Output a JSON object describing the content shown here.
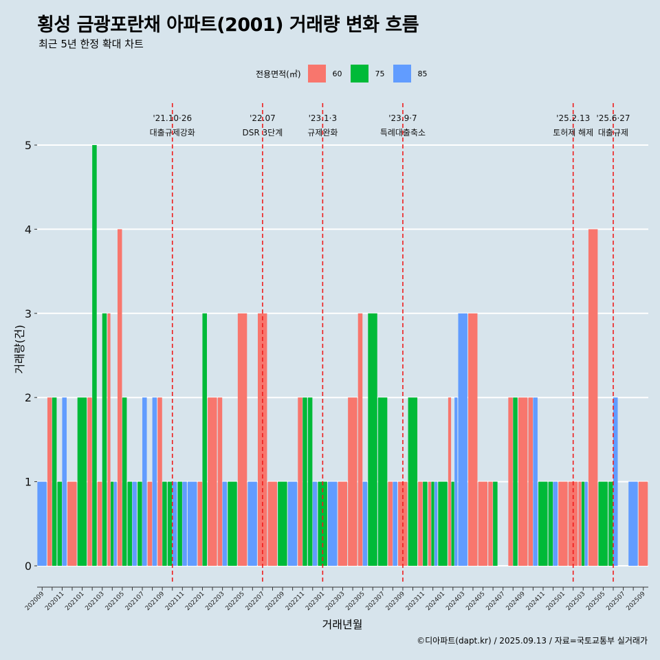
{
  "title": "횡성 금광포란채 아파트(2001) 거래량 변화 흐름",
  "subtitle": "최근 5년 한정 확대 차트",
  "caption": "©디아파트(dapt.kr) / 2025.09.13 / 자료=국토교통부 실거래가",
  "legend": {
    "title": "전용면적(㎡)",
    "items": [
      {
        "label": "60",
        "color": "#f8766d"
      },
      {
        "label": "75",
        "color": "#00ba38"
      },
      {
        "label": "85",
        "color": "#619cff"
      }
    ]
  },
  "chart_data": {
    "type": "bar",
    "xlabel": "거래년월",
    "ylabel": "거래량(건)",
    "ylim": [
      -0.2,
      5.5
    ],
    "yticks": [
      0,
      1,
      2,
      3,
      4,
      5
    ],
    "grid": true,
    "legend_position": "top",
    "categories": [
      "202009",
      "202010",
      "202011",
      "202012",
      "202101",
      "202102",
      "202103",
      "202104",
      "202105",
      "202106",
      "202107",
      "202108",
      "202109",
      "202110",
      "202111",
      "202112",
      "202201",
      "202202",
      "202203",
      "202204",
      "202205",
      "202206",
      "202207",
      "202208",
      "202209",
      "202210",
      "202211",
      "202212",
      "202301",
      "202302",
      "202303",
      "202304",
      "202305",
      "202306",
      "202307",
      "202308",
      "202309",
      "202310",
      "202311",
      "202312",
      "202401",
      "202402",
      "202403",
      "202404",
      "202405",
      "202406",
      "202407",
      "202408",
      "202409",
      "202410",
      "202411",
      "202412",
      "202501",
      "202502",
      "202503",
      "202504",
      "202505",
      "202506",
      "202507",
      "202508",
      "202509"
    ],
    "series": [
      {
        "name": "60",
        "color": "#f8766d",
        "values": [
          0,
          2,
          0,
          1,
          0,
          2,
          1,
          3,
          4,
          0,
          0,
          1,
          2,
          0,
          0,
          0,
          1,
          2,
          2,
          0,
          3,
          0,
          3,
          1,
          0,
          0,
          2,
          0,
          0,
          0,
          1,
          2,
          3,
          0,
          0,
          1,
          1,
          0,
          1,
          1,
          0,
          2,
          0,
          3,
          1,
          1,
          0,
          2,
          2,
          2,
          0,
          0,
          1,
          1,
          1,
          4,
          0,
          0,
          0,
          0,
          1
        ]
      },
      {
        "name": "75",
        "color": "#00ba38",
        "values": [
          0,
          2,
          1,
          0,
          2,
          5,
          3,
          1,
          2,
          1,
          1,
          0,
          1,
          1,
          1,
          0,
          3,
          0,
          0,
          1,
          0,
          0,
          0,
          0,
          1,
          0,
          2,
          2,
          1,
          0,
          0,
          0,
          0,
          3,
          2,
          0,
          0,
          2,
          1,
          1,
          1,
          1,
          0,
          0,
          0,
          1,
          0,
          2,
          0,
          0,
          1,
          1,
          0,
          0,
          1,
          0,
          1,
          1,
          0,
          0,
          0
        ]
      },
      {
        "name": "85",
        "color": "#619cff",
        "values": [
          1,
          0,
          2,
          0,
          0,
          0,
          0,
          1,
          0,
          1,
          2,
          2,
          0,
          1,
          1,
          1,
          0,
          0,
          1,
          0,
          0,
          1,
          0,
          0,
          0,
          1,
          0,
          1,
          0,
          1,
          0,
          0,
          1,
          0,
          0,
          1,
          0,
          0,
          0,
          1,
          0,
          2,
          3,
          0,
          0,
          0,
          0,
          0,
          0,
          2,
          0,
          1,
          0,
          0,
          1,
          0,
          0,
          2,
          0,
          1,
          0
        ]
      }
    ],
    "annotations": [
      {
        "date": "202110",
        "label1": "'21.10·26",
        "label2": "대출규제강화"
      },
      {
        "date": "202207",
        "label1": "'22.07",
        "label2": "DSR 3단계"
      },
      {
        "date": "202301",
        "label1": "'23.1·3",
        "label2": "규제완화"
      },
      {
        "date": "202309",
        "label1": "'23.9·7",
        "label2": "특례대출축소"
      },
      {
        "date": "202502",
        "label1": "'25.2.13",
        "label2": "토허제 해제"
      },
      {
        "date": "202506",
        "label1": "'25.6·27",
        "label2": "대출규제"
      }
    ]
  }
}
